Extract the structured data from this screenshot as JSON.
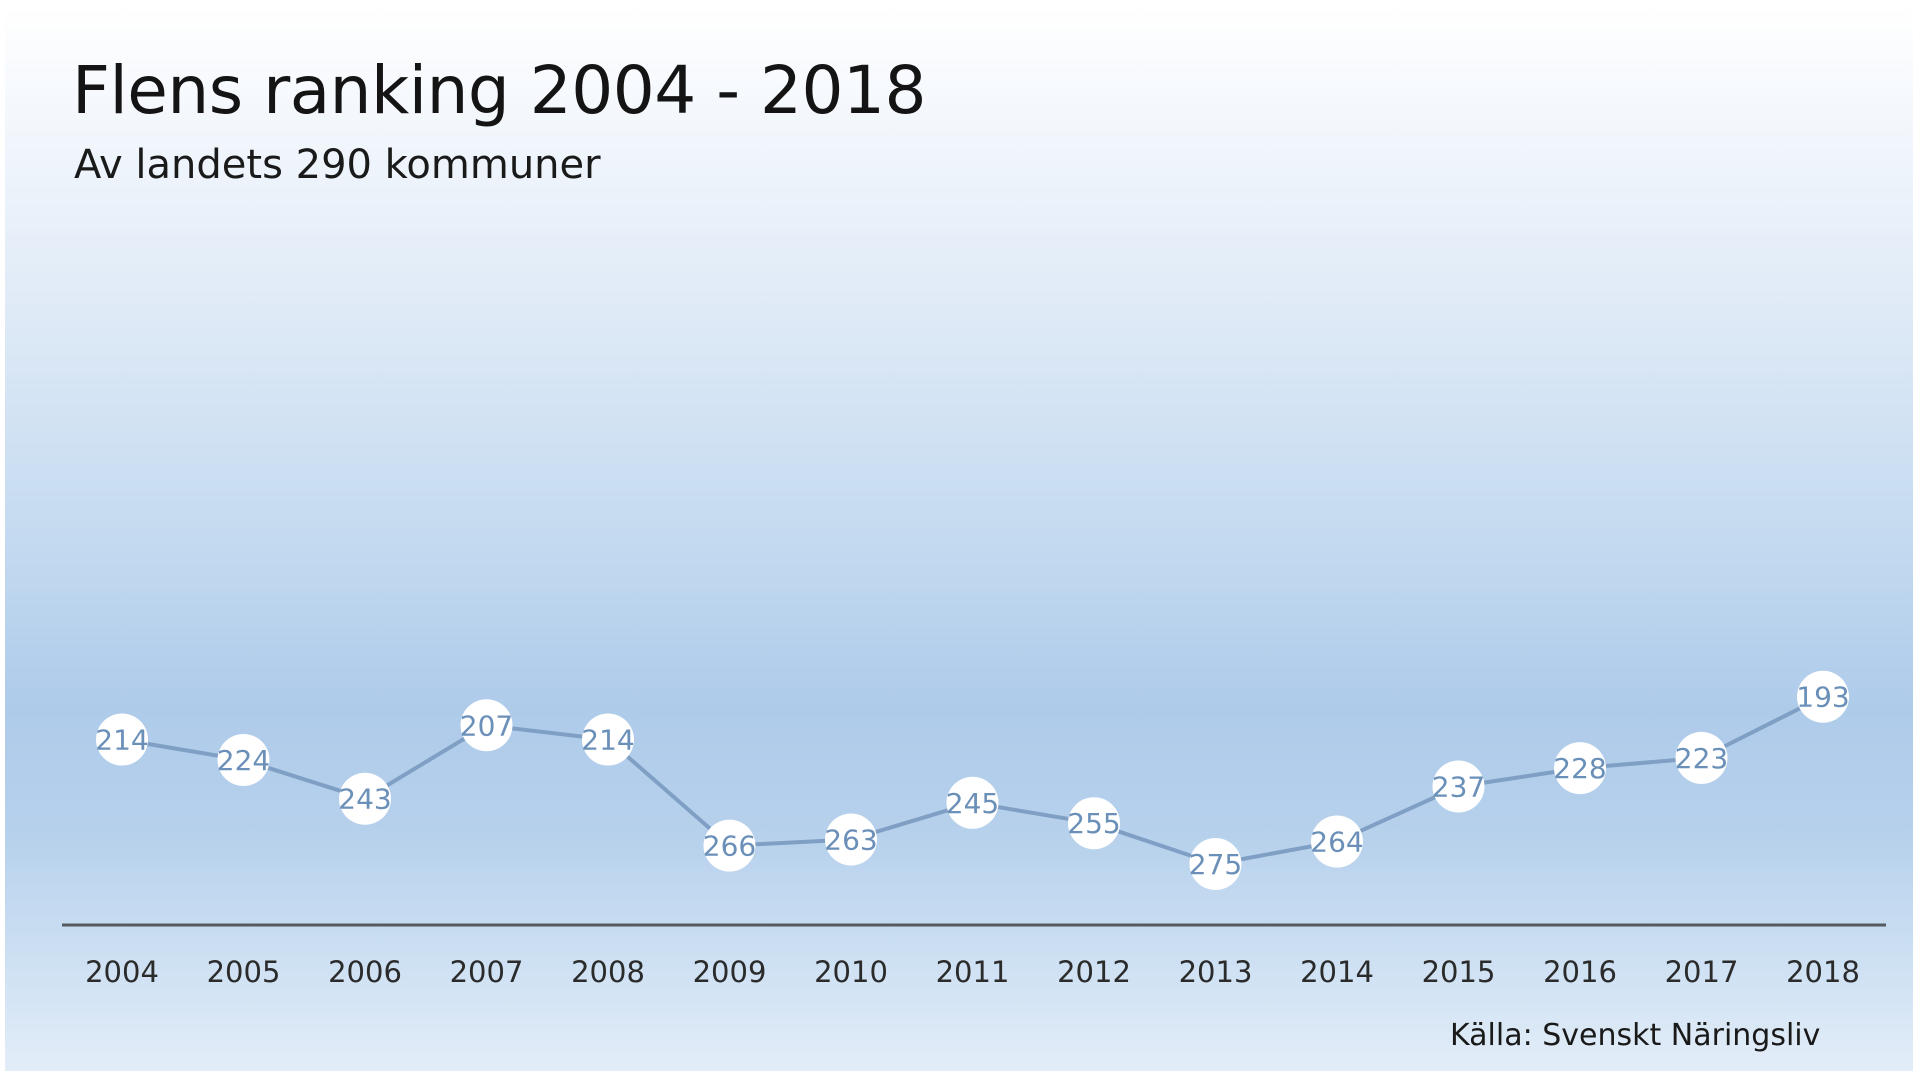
{
  "chart_data": {
    "type": "line",
    "title": "Flens ranking 2004 - 2018",
    "subtitle": "Av landets 290 kommuner",
    "xlabel": "",
    "ylabel": "",
    "categories": [
      "2004",
      "2005",
      "2006",
      "2007",
      "2008",
      "2009",
      "2010",
      "2011",
      "2012",
      "2013",
      "2014",
      "2015",
      "2016",
      "2017",
      "2018"
    ],
    "series": [
      {
        "values": [
          214,
          224,
          243,
          207,
          214,
          266,
          263,
          245,
          255,
          275,
          264,
          237,
          228,
          223,
          193
        ]
      }
    ],
    "y_axis_visible": false,
    "grid": false,
    "legend": "none",
    "data_labels": true,
    "annotation": "Källa: Svenskt Näringsliv",
    "colors": {
      "line": "#7f9fc4",
      "marker_fill": "#ffffff",
      "data_label": "#6a8fb8",
      "axis": "#555a60"
    }
  }
}
